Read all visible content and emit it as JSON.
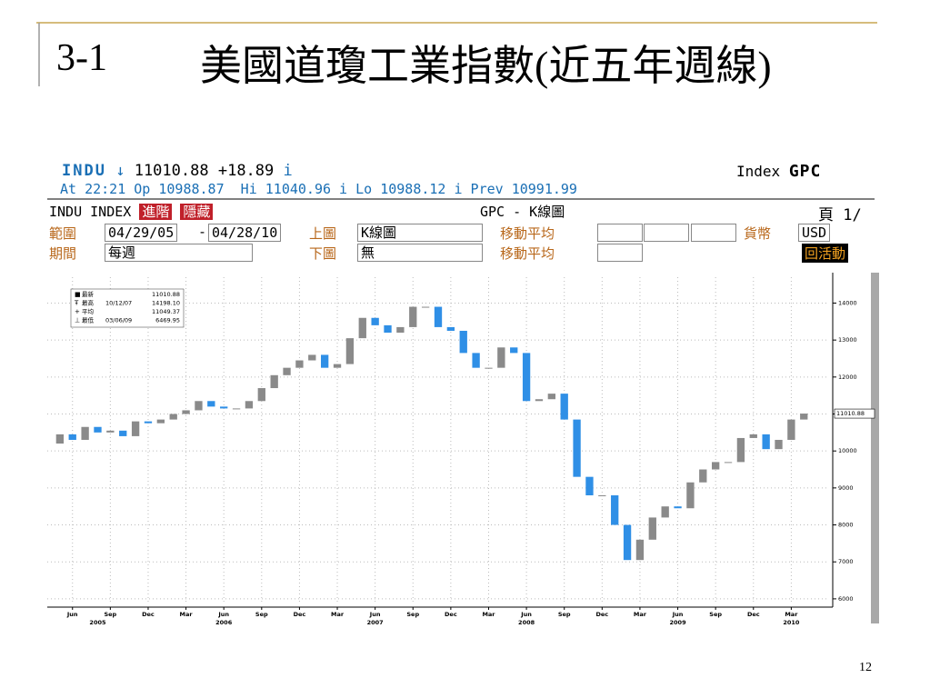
{
  "header": {
    "section": "3-1",
    "title": "美國道瓊工業指數(近五年週線)"
  },
  "terminal": {
    "ticker": "INDU",
    "arrow": "↓",
    "last": "11010.88",
    "change": "+18.89",
    "flag": "i",
    "asset": "Index",
    "function": "GPC",
    "quote_line": "At 22:21 Op 10988.87  Hi 11040.96 i Lo 10988.12 i Prev 10991.99",
    "security": "INDU INDEX",
    "buttons": [
      "進階",
      "隱藏"
    ],
    "chart_title": "GPC - K線圖",
    "page": "頁 1/",
    "range_label": "範圍",
    "range_start": "04/29/05",
    "range_sep": "-",
    "range_end": "04/28/10",
    "upper_label": "上圖",
    "upper_value": "K線圖",
    "ma_label": "移動平均",
    "currency_label": "貨幣",
    "currency": "USD",
    "period_label": "期間",
    "period": "每週",
    "lower_label": "下圖",
    "lower_value": "無",
    "ma_label_2": "移動平均",
    "activity": "回活動"
  },
  "chart_data": {
    "type": "candlestick",
    "x": [
      "2005-05",
      "2005-06",
      "2005-07",
      "2005-08",
      "2005-09",
      "2005-10",
      "2005-11",
      "2005-12",
      "2006-01",
      "2006-02",
      "2006-03",
      "2006-04",
      "2006-05",
      "2006-06",
      "2006-07",
      "2006-08",
      "2006-09",
      "2006-10",
      "2006-11",
      "2006-12",
      "2007-01",
      "2007-02",
      "2007-03",
      "2007-04",
      "2007-05",
      "2007-06",
      "2007-07",
      "2007-08",
      "2007-09",
      "2007-10",
      "2007-11",
      "2007-12",
      "2008-01",
      "2008-02",
      "2008-03",
      "2008-04",
      "2008-05",
      "2008-06",
      "2008-07",
      "2008-08",
      "2008-09",
      "2008-10",
      "2008-11",
      "2008-12",
      "2009-01",
      "2009-02",
      "2009-03",
      "2009-04",
      "2009-05",
      "2009-06",
      "2009-07",
      "2009-08",
      "2009-09",
      "2009-10",
      "2009-11",
      "2009-12",
      "2010-01",
      "2010-02",
      "2010-03",
      "2010-04"
    ],
    "open": [
      10200,
      10450,
      10300,
      10650,
      10500,
      10550,
      10400,
      10800,
      10750,
      10850,
      11000,
      11100,
      11350,
      11200,
      11150,
      11150,
      11350,
      11700,
      12050,
      12250,
      12450,
      12600,
      12250,
      12350,
      13050,
      13600,
      13400,
      13200,
      13350,
      13900,
      13900,
      13350,
      13250,
      12650,
      12250,
      12250,
      12800,
      12650,
      11350,
      11400,
      11550,
      10850,
      9300,
      8800,
      8800,
      8000,
      7050,
      7600,
      8200,
      8500,
      8450,
      9150,
      9500,
      9700,
      9700,
      10350,
      10450,
      10050,
      10300,
      10850
    ],
    "close": [
      10450,
      10300,
      10650,
      10500,
      10550,
      10400,
      10800,
      10750,
      10850,
      11000,
      11100,
      11350,
      11200,
      11150,
      11150,
      11350,
      11700,
      12050,
      12250,
      12450,
      12600,
      12250,
      12350,
      13050,
      13600,
      13400,
      13200,
      13350,
      13900,
      13900,
      13350,
      13250,
      12650,
      12250,
      12250,
      12800,
      12650,
      11350,
      11400,
      11550,
      10850,
      9300,
      8800,
      8800,
      8000,
      7050,
      7600,
      8200,
      8500,
      8450,
      9150,
      9500,
      9700,
      9700,
      10350,
      10450,
      10050,
      10300,
      10850,
      11010.88
    ],
    "up_color": "#8a8a8a",
    "down_color": "#2f8fe6",
    "xlim": [
      "2005-04",
      "2010-06"
    ],
    "xticks": [
      {
        "value": "2005-06",
        "label": "Jun"
      },
      {
        "value": "2005-09",
        "label": "Sep"
      },
      {
        "value": "2005-12",
        "label": "Dec"
      },
      {
        "value": "2006-03",
        "label": "Mar"
      },
      {
        "value": "2006-06",
        "label": "Jun"
      },
      {
        "value": "2006-09",
        "label": "Sep"
      },
      {
        "value": "2006-12",
        "label": "Dec"
      },
      {
        "value": "2007-03",
        "label": "Mar"
      },
      {
        "value": "2007-06",
        "label": "Jun"
      },
      {
        "value": "2007-09",
        "label": "Sep"
      },
      {
        "value": "2007-12",
        "label": "Dec"
      },
      {
        "value": "2008-03",
        "label": "Mar"
      },
      {
        "value": "2008-06",
        "label": "Jun"
      },
      {
        "value": "2008-09",
        "label": "Sep"
      },
      {
        "value": "2008-12",
        "label": "Dec"
      },
      {
        "value": "2009-03",
        "label": "Mar"
      },
      {
        "value": "2009-06",
        "label": "Jun"
      },
      {
        "value": "2009-09",
        "label": "Sep"
      },
      {
        "value": "2009-12",
        "label": "Dec"
      },
      {
        "value": "2010-03",
        "label": "Mar"
      }
    ],
    "year_labels": [
      {
        "value": "2005-08",
        "label": "2005"
      },
      {
        "value": "2006-06",
        "label": "2006"
      },
      {
        "value": "2007-06",
        "label": "2007"
      },
      {
        "value": "2008-06",
        "label": "2008"
      },
      {
        "value": "2009-06",
        "label": "2009"
      },
      {
        "value": "2010-03",
        "label": "2010"
      }
    ],
    "ylim": [
      5850,
      14700
    ],
    "yticks": [
      6000,
      7000,
      8000,
      9000,
      10000,
      11000,
      12000,
      13000,
      14000
    ],
    "grid": true,
    "last_label": {
      "value": 11010.88,
      "label": "11010.88"
    },
    "legend": [
      {
        "label": "最新",
        "value": "11010.88"
      },
      {
        "label": "最高",
        "date": "10/12/07",
        "value": "14198.10"
      },
      {
        "label": "平均",
        "value": "11049.37"
      },
      {
        "label": "最低",
        "date": "03/06/09",
        "value": "6469.95"
      }
    ]
  },
  "footer": {
    "page": "12"
  }
}
